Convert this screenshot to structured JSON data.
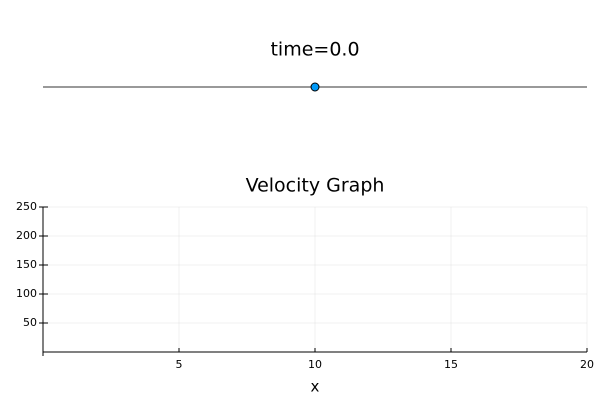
{
  "chart_data": [
    {
      "type": "line",
      "title": "time=0.0",
      "xlim": [
        0,
        20
      ],
      "ylim": [
        -1,
        1
      ],
      "axes": false,
      "series": [
        {
          "x": [
            0,
            20
          ],
          "values": [
            0,
            0
          ],
          "color": "#333333",
          "marker": false
        },
        {
          "x": [
            10
          ],
          "values": [
            0
          ],
          "color": "#009af9",
          "marker": true
        }
      ]
    },
    {
      "type": "line",
      "title": "Velocity Graph",
      "xlabel": "x",
      "xlim": [
        0,
        20
      ],
      "ylim": [
        0,
        250
      ],
      "xticks": [
        5,
        10,
        15,
        20
      ],
      "yticks": [
        50,
        100,
        150,
        200,
        250
      ],
      "grid": true,
      "axes": true,
      "series": []
    }
  ]
}
